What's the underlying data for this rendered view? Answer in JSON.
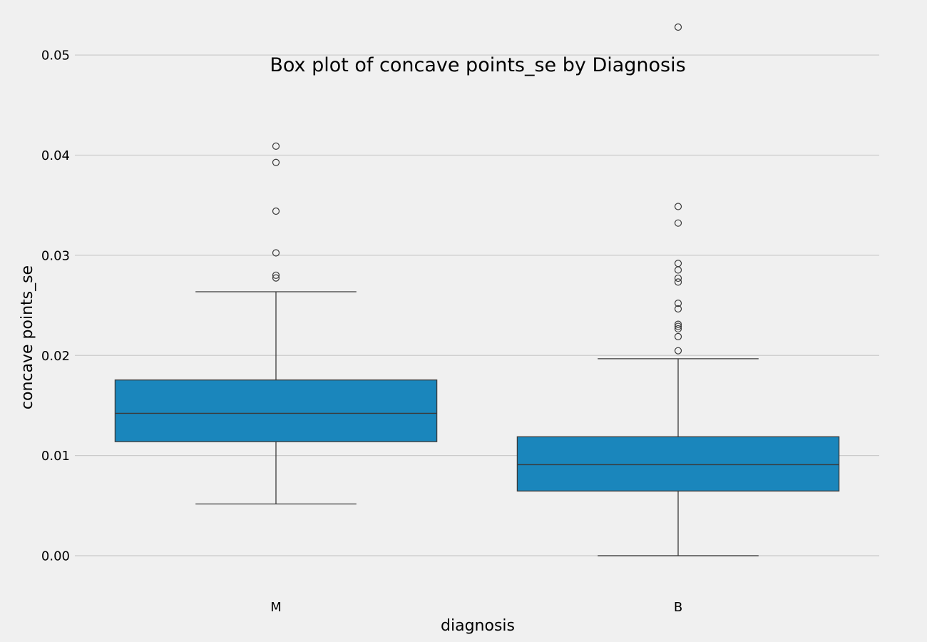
{
  "chart_data": {
    "type": "box",
    "title": "Box plot of concave points_se by Diagnosis",
    "xlabel": "diagnosis",
    "ylabel": "concave points_se",
    "ylim": [
      -0.0042,
      0.0535
    ],
    "yticks": [
      "0.00",
      "0.01",
      "0.02",
      "0.03",
      "0.04",
      "0.05"
    ],
    "grid": "horizontal",
    "box_color": "#1a86bc",
    "line_color": "#3a3a3a",
    "background": "#f0f0f0",
    "categories": [
      "M",
      "B"
    ],
    "boxes": [
      {
        "category": "M",
        "whisker_low": 0.00517,
        "q1": 0.01139,
        "median": 0.01422,
        "q3": 0.01755,
        "whisker_high": 0.02636,
        "outliers": [
          0.0409,
          0.03927,
          0.03441,
          0.03024,
          0.02801,
          0.02774
        ]
      },
      {
        "category": "B",
        "whisker_low": 0.0,
        "q1": 0.00646,
        "median": 0.00909,
        "q3": 0.01188,
        "whisker_high": 0.01967,
        "outliers": [
          0.05279,
          0.03487,
          0.03322,
          0.02919,
          0.02853,
          0.02771,
          0.02733,
          0.02521,
          0.02465,
          0.02311,
          0.0229,
          0.02266,
          0.02188,
          0.02047
        ]
      }
    ]
  }
}
